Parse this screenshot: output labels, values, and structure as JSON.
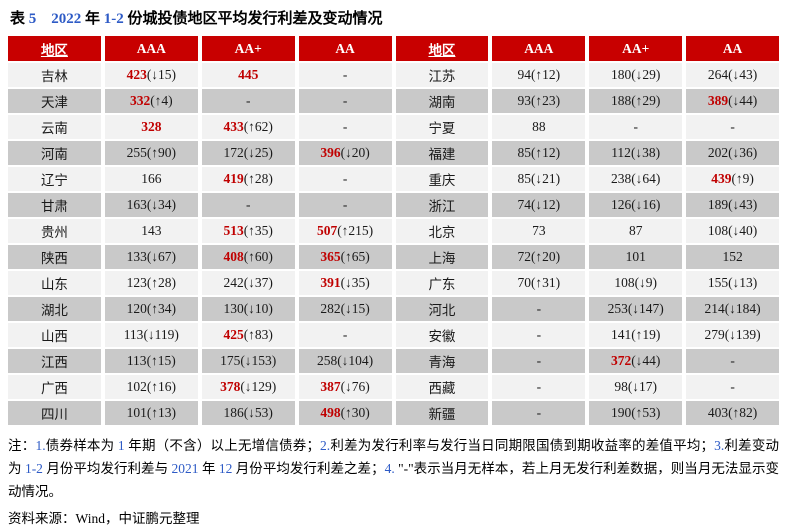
{
  "title": "表 5　2022 年 1-2 份城投债地区平均发行利差及变动情况",
  "table": {
    "headers": [
      "地区",
      "AAA",
      "AA+",
      "AA"
    ],
    "left_rows": [
      {
        "region": "吉林",
        "cells": [
          {
            "v": "423",
            "chg": "(↓15)",
            "hl": true
          },
          {
            "v": "445",
            "chg": "",
            "hl": true
          },
          {
            "v": "-",
            "chg": "",
            "hl": false
          }
        ]
      },
      {
        "region": "天津",
        "cells": [
          {
            "v": "332",
            "chg": "(↑4)",
            "hl": true
          },
          {
            "v": "-",
            "chg": "",
            "hl": false
          },
          {
            "v": "-",
            "chg": "",
            "hl": false
          }
        ]
      },
      {
        "region": "云南",
        "cells": [
          {
            "v": "328",
            "chg": "",
            "hl": true
          },
          {
            "v": "433",
            "chg": "(↑62)",
            "hl": true
          },
          {
            "v": "-",
            "chg": "",
            "hl": false
          }
        ]
      },
      {
        "region": "河南",
        "cells": [
          {
            "v": "255",
            "chg": "(↑90)",
            "hl": false
          },
          {
            "v": "172",
            "chg": "(↓25)",
            "hl": false
          },
          {
            "v": "396",
            "chg": "(↓20)",
            "hl": true
          }
        ]
      },
      {
        "region": "辽宁",
        "cells": [
          {
            "v": "166",
            "chg": "",
            "hl": false
          },
          {
            "v": "419",
            "chg": "(↑28)",
            "hl": true
          },
          {
            "v": "-",
            "chg": "",
            "hl": false
          }
        ]
      },
      {
        "region": "甘肃",
        "cells": [
          {
            "v": "163",
            "chg": "(↓34)",
            "hl": false
          },
          {
            "v": "-",
            "chg": "",
            "hl": false
          },
          {
            "v": "-",
            "chg": "",
            "hl": false
          }
        ]
      },
      {
        "region": "贵州",
        "cells": [
          {
            "v": "143",
            "chg": "",
            "hl": false
          },
          {
            "v": "513",
            "chg": "(↑35)",
            "hl": true
          },
          {
            "v": "507",
            "chg": "(↑215)",
            "hl": true
          }
        ]
      },
      {
        "region": "陕西",
        "cells": [
          {
            "v": "133",
            "chg": "(↓67)",
            "hl": false
          },
          {
            "v": "408",
            "chg": "(↑60)",
            "hl": true
          },
          {
            "v": "365",
            "chg": "(↑65)",
            "hl": true
          }
        ]
      },
      {
        "region": "山东",
        "cells": [
          {
            "v": "123",
            "chg": "(↑28)",
            "hl": false
          },
          {
            "v": "242",
            "chg": "(↓37)",
            "hl": false
          },
          {
            "v": "391",
            "chg": "(↓35)",
            "hl": true
          }
        ]
      },
      {
        "region": "湖北",
        "cells": [
          {
            "v": "120",
            "chg": "(↑34)",
            "hl": false
          },
          {
            "v": "130",
            "chg": "(↓10)",
            "hl": false
          },
          {
            "v": "282",
            "chg": "(↓15)",
            "hl": false
          }
        ]
      },
      {
        "region": "山西",
        "cells": [
          {
            "v": "113",
            "chg": "(↓119)",
            "hl": false
          },
          {
            "v": "425",
            "chg": "(↑83)",
            "hl": true
          },
          {
            "v": "-",
            "chg": "",
            "hl": false
          }
        ]
      },
      {
        "region": "江西",
        "cells": [
          {
            "v": "113",
            "chg": "(↑15)",
            "hl": false
          },
          {
            "v": "175",
            "chg": "(↓153)",
            "hl": false
          },
          {
            "v": "258",
            "chg": "(↓104)",
            "hl": false
          }
        ]
      },
      {
        "region": "广西",
        "cells": [
          {
            "v": "102",
            "chg": "(↑16)",
            "hl": false
          },
          {
            "v": "378",
            "chg": "(↓129)",
            "hl": true
          },
          {
            "v": "387",
            "chg": "(↓76)",
            "hl": true
          }
        ]
      },
      {
        "region": "四川",
        "cells": [
          {
            "v": "101",
            "chg": "(↑13)",
            "hl": false
          },
          {
            "v": "186",
            "chg": "(↓53)",
            "hl": false
          },
          {
            "v": "498",
            "chg": "(↑30)",
            "hl": true
          }
        ]
      }
    ],
    "right_rows": [
      {
        "region": "江苏",
        "cells": [
          {
            "v": "94",
            "chg": "(↑12)",
            "hl": false
          },
          {
            "v": "180",
            "chg": "(↓29)",
            "hl": false
          },
          {
            "v": "264",
            "chg": "(↓43)",
            "hl": false
          }
        ]
      },
      {
        "region": "湖南",
        "cells": [
          {
            "v": "93",
            "chg": "(↑23)",
            "hl": false
          },
          {
            "v": "188",
            "chg": "(↑29)",
            "hl": false
          },
          {
            "v": "389",
            "chg": "(↓44)",
            "hl": true
          }
        ]
      },
      {
        "region": "宁夏",
        "cells": [
          {
            "v": "88",
            "chg": "",
            "hl": false
          },
          {
            "v": "-",
            "chg": "",
            "hl": false
          },
          {
            "v": "-",
            "chg": "",
            "hl": false
          }
        ]
      },
      {
        "region": "福建",
        "cells": [
          {
            "v": "85",
            "chg": "(↑12)",
            "hl": false
          },
          {
            "v": "112",
            "chg": "(↓38)",
            "hl": false
          },
          {
            "v": "202",
            "chg": "(↓36)",
            "hl": false
          }
        ]
      },
      {
        "region": "重庆",
        "cells": [
          {
            "v": "85",
            "chg": "(↓21)",
            "hl": false
          },
          {
            "v": "238",
            "chg": "(↓64)",
            "hl": false
          },
          {
            "v": "439",
            "chg": "(↑9)",
            "hl": true
          }
        ]
      },
      {
        "region": "浙江",
        "cells": [
          {
            "v": "74",
            "chg": "(↓12)",
            "hl": false
          },
          {
            "v": "126",
            "chg": "(↓16)",
            "hl": false
          },
          {
            "v": "189",
            "chg": "(↓43)",
            "hl": false
          }
        ]
      },
      {
        "region": "北京",
        "cells": [
          {
            "v": "73",
            "chg": "",
            "hl": false
          },
          {
            "v": "87",
            "chg": "",
            "hl": false
          },
          {
            "v": "108",
            "chg": "(↓40)",
            "hl": false
          }
        ]
      },
      {
        "region": "上海",
        "cells": [
          {
            "v": "72",
            "chg": "(↑20)",
            "hl": false
          },
          {
            "v": "101",
            "chg": "",
            "hl": false
          },
          {
            "v": "152",
            "chg": "",
            "hl": false
          }
        ]
      },
      {
        "region": "广东",
        "cells": [
          {
            "v": "70",
            "chg": "(↑31)",
            "hl": false
          },
          {
            "v": "108",
            "chg": "(↓9)",
            "hl": false
          },
          {
            "v": "155",
            "chg": "(↓13)",
            "hl": false
          }
        ]
      },
      {
        "region": "河北",
        "cells": [
          {
            "v": "-",
            "chg": "",
            "hl": false
          },
          {
            "v": "253",
            "chg": "(↓147)",
            "hl": false
          },
          {
            "v": "214",
            "chg": "(↓184)",
            "hl": false
          }
        ]
      },
      {
        "region": "安徽",
        "cells": [
          {
            "v": "-",
            "chg": "",
            "hl": false
          },
          {
            "v": "141",
            "chg": "(↑19)",
            "hl": false
          },
          {
            "v": "279",
            "chg": "(↓139)",
            "hl": false
          }
        ]
      },
      {
        "region": "青海",
        "cells": [
          {
            "v": "-",
            "chg": "",
            "hl": false
          },
          {
            "v": "372",
            "chg": "(↓44)",
            "hl": true
          },
          {
            "v": "-",
            "chg": "",
            "hl": false
          }
        ]
      },
      {
        "region": "西藏",
        "cells": [
          {
            "v": "-",
            "chg": "",
            "hl": false
          },
          {
            "v": "98",
            "chg": "(↓17)",
            "hl": false
          },
          {
            "v": "-",
            "chg": "",
            "hl": false
          }
        ]
      },
      {
        "region": "新疆",
        "cells": [
          {
            "v": "-",
            "chg": "",
            "hl": false
          },
          {
            "v": "190",
            "chg": "(↑53)",
            "hl": false
          },
          {
            "v": "403",
            "chg": "(↑82)",
            "hl": false
          }
        ]
      }
    ]
  },
  "notes": "注：1.债券样本为 1 年期（不含）以上无增信债券；2.利差为发行利率与发行当日同期限国债到期收益率的差值平均；3.利差变动为 1-2 月份平均发行利差与 2021 年 12 月份平均发行利差之差；4. \"-\"表示当月无样本，若上月无发行利差数据，则当月无法显示变动情况。",
  "source": "资料来源：Wind，中证鹏元整理",
  "colors": {
    "header_bg": "#C80000",
    "highlight": "#C00000",
    "row_light": "#F2F2F2",
    "row_dark": "#C9C9C9",
    "digit_blue": "#2E5BC6"
  }
}
